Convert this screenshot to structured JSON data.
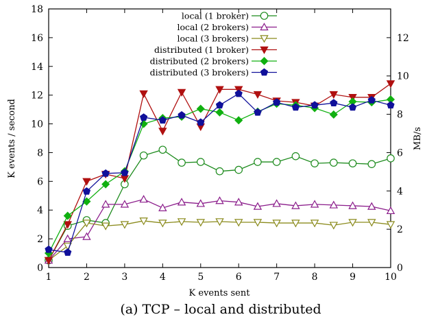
{
  "chart_data": {
    "type": "line",
    "caption": "(a) TCP – local and distributed",
    "xlabel": "K events sent",
    "ylabel": "K events / second",
    "y2label": "MB/s",
    "xlim": [
      1,
      10
    ],
    "ylim": [
      0,
      18
    ],
    "y2lim": [
      0,
      13.5
    ],
    "x_ticks": [
      1,
      2,
      3,
      4,
      5,
      6,
      7,
      8,
      9,
      10
    ],
    "y_ticks": [
      0,
      2,
      4,
      6,
      8,
      10,
      12,
      14,
      16,
      18
    ],
    "y2_ticks": [
      0,
      2,
      4,
      6,
      8,
      10,
      12
    ],
    "grid": false,
    "legend_position": "top-right",
    "x": [
      1,
      1.5,
      2,
      2.5,
      3,
      3.5,
      4,
      4.5,
      5,
      5.5,
      6,
      6.5,
      7,
      7.5,
      8,
      8.5,
      9,
      9.5,
      10
    ],
    "series": [
      {
        "name": "local (1 broker)",
        "color": "#1b8a1b",
        "marker": "circle-open",
        "values": [
          0.5,
          2.9,
          3.3,
          3.1,
          5.8,
          7.8,
          8.2,
          7.3,
          7.35,
          6.7,
          6.8,
          7.35,
          7.35,
          7.75,
          7.25,
          7.3,
          7.25,
          7.2,
          7.6
        ]
      },
      {
        "name": "local (2 brokers)",
        "color": "#8a1b8a",
        "marker": "triangle-up-open",
        "values": [
          0.5,
          2.0,
          2.15,
          4.4,
          4.4,
          4.75,
          4.15,
          4.55,
          4.45,
          4.65,
          4.55,
          4.25,
          4.45,
          4.3,
          4.4,
          4.35,
          4.3,
          4.25,
          3.95
        ]
      },
      {
        "name": "local (3 brokers)",
        "color": "#8a8a1b",
        "marker": "triangle-down-open",
        "values": [
          0.5,
          1.5,
          3.1,
          2.9,
          3.0,
          3.25,
          3.1,
          3.2,
          3.15,
          3.2,
          3.15,
          3.15,
          3.1,
          3.1,
          3.1,
          2.95,
          3.15,
          3.15,
          3.0
        ]
      },
      {
        "name": "distributed (1 broker)",
        "color": "#b01010",
        "marker": "triangle-down-filled",
        "values": [
          0.5,
          3.0,
          6.0,
          6.5,
          6.2,
          12.1,
          9.5,
          12.2,
          9.8,
          12.4,
          12.4,
          12.05,
          11.6,
          11.5,
          11.25,
          12.05,
          11.85,
          11.85,
          12.8
        ]
      },
      {
        "name": "distributed (2 brokers)",
        "color": "#10b010",
        "marker": "diamond-filled",
        "values": [
          1.0,
          3.6,
          4.6,
          5.8,
          6.7,
          10.0,
          10.4,
          10.5,
          11.05,
          10.8,
          10.25,
          10.85,
          11.4,
          11.3,
          11.1,
          10.65,
          11.55,
          11.5,
          11.7
        ]
      },
      {
        "name": "distributed (3 brokers)",
        "color": "#10109a",
        "marker": "pentagon-filled",
        "values": [
          1.25,
          1.05,
          5.3,
          6.55,
          6.6,
          10.45,
          10.25,
          10.6,
          10.1,
          11.3,
          12.1,
          10.8,
          11.5,
          11.15,
          11.3,
          11.45,
          11.15,
          11.65,
          11.3
        ]
      }
    ]
  }
}
